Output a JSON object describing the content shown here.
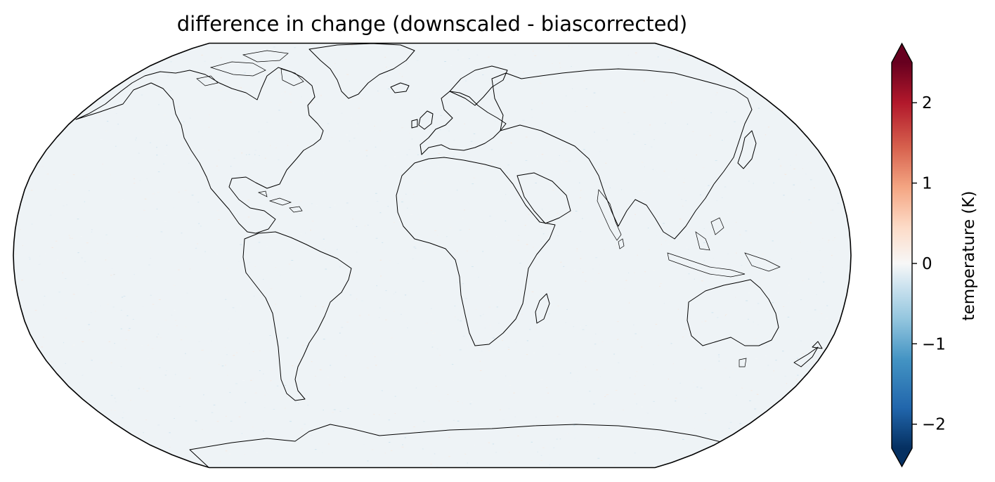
{
  "chart_data": {
    "type": "heatmap",
    "title": "difference in change (downscaled - biascorrected)",
    "projection": "Robinson",
    "field": "global gridded temperature difference, near zero almost everywhere with small speckled deviations",
    "colormap": "RdBu_r",
    "colorbar": {
      "label": "temperature (K)",
      "vmin": -2.3,
      "vmax": 2.5,
      "extend": "both",
      "ticks": [
        -2,
        -1,
        0,
        1,
        2
      ],
      "tick_labels": [
        "−2",
        "−1",
        "0",
        "1",
        "2"
      ],
      "stops": [
        {
          "value": -2.3,
          "color": "#053061"
        },
        {
          "value": -1.8,
          "color": "#2166ac"
        },
        {
          "value": -1.2,
          "color": "#4393c3"
        },
        {
          "value": -0.7,
          "color": "#92c5de"
        },
        {
          "value": -0.25,
          "color": "#d1e5f0"
        },
        {
          "value": 0.0,
          "color": "#f7f7f7"
        },
        {
          "value": 0.45,
          "color": "#fddbc7"
        },
        {
          "value": 0.95,
          "color": "#f4a582"
        },
        {
          "value": 1.45,
          "color": "#d6604d"
        },
        {
          "value": 2.0,
          "color": "#b2182b"
        },
        {
          "value": 2.5,
          "color": "#67001f"
        }
      ]
    },
    "typical_value": -0.05,
    "background_color": "#eef3f6",
    "coastlines": true
  }
}
